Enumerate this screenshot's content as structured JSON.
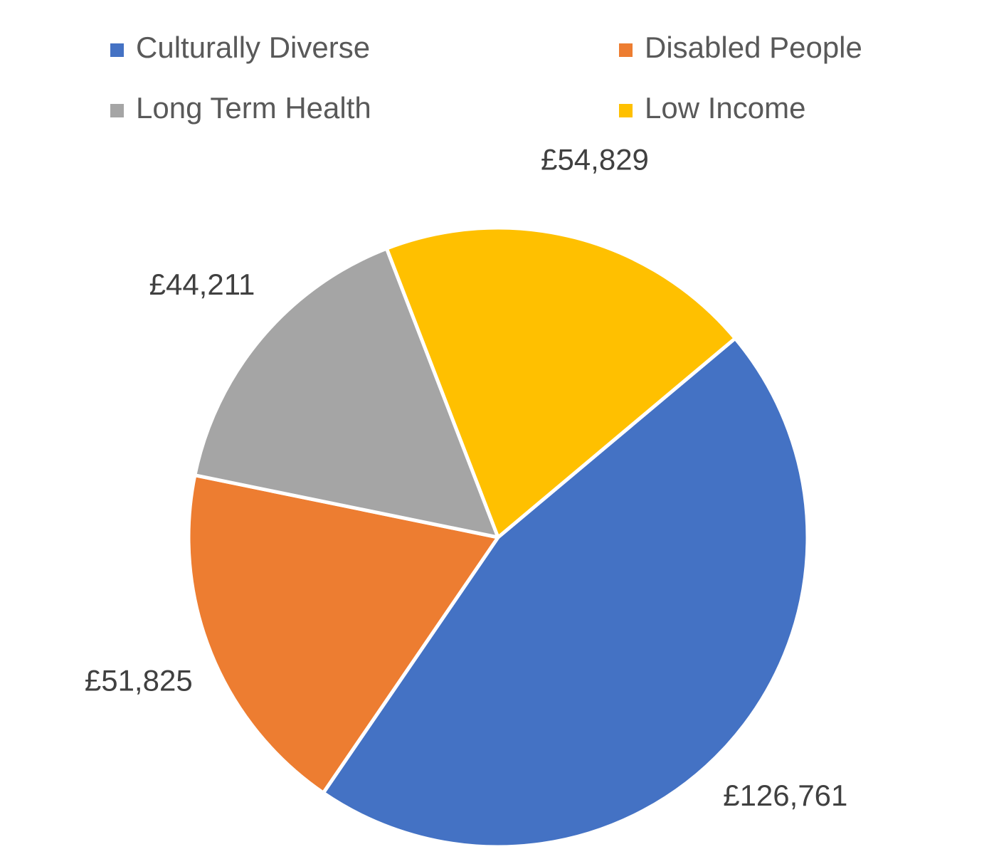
{
  "chart_data": {
    "type": "pie",
    "categories": [
      "Culturally Diverse",
      "Disabled People",
      "Long Term Health",
      "Low Income"
    ],
    "values": [
      126761,
      51825,
      44211,
      54829
    ],
    "value_labels": [
      "£126,761",
      "£51,825",
      "£44,211",
      "£54,829"
    ],
    "colors": [
      "#4472c4",
      "#ed7d31",
      "#a5a5a5",
      "#ffc000"
    ],
    "legend": "top"
  }
}
